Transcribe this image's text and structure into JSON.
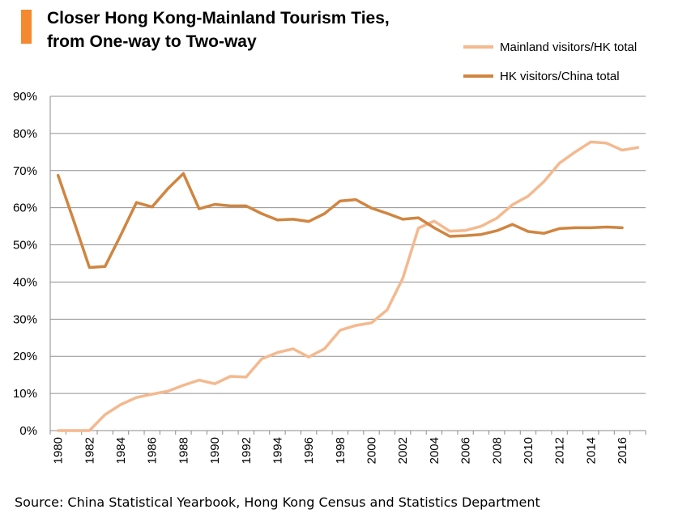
{
  "title_lines": [
    "Closer Hong Kong-Mainland Tourism Ties,",
    "from One-way to Two-way"
  ],
  "accent_color": "#f5892f",
  "source": "Source: China Statistical Yearbook, Hong Kong Census and Statistics Department",
  "chart_data": {
    "type": "line",
    "x_ticks": [
      "1980",
      "1982",
      "1984",
      "1986",
      "1988",
      "1990",
      "1992",
      "1994",
      "1996",
      "1998",
      "2000",
      "2002",
      "2004",
      "2006",
      "2008",
      "2010",
      "2012",
      "2014",
      "2016"
    ],
    "y_ticks": [
      "0%",
      "10%",
      "20%",
      "30%",
      "40%",
      "50%",
      "60%",
      "70%",
      "80%",
      "90%"
    ],
    "ylim": [
      0,
      90
    ],
    "xlim": [
      1980,
      2017
    ],
    "grid": true,
    "legend_position": "top-right",
    "series": [
      {
        "name": "Mainland visitors/HK total",
        "color": "#f4b98f",
        "x": [
          1980,
          1981,
          1982,
          1983,
          1984,
          1985,
          1986,
          1987,
          1988,
          1989,
          1990,
          1991,
          1992,
          1993,
          1994,
          1995,
          1996,
          1997,
          1998,
          1999,
          2000,
          2001,
          2002,
          2003,
          2004,
          2005,
          2006,
          2007,
          2008,
          2009,
          2010,
          2011,
          2012,
          2013,
          2014,
          2015,
          2016,
          2017
        ],
        "values": [
          0,
          0,
          0,
          4.3,
          7,
          8.9,
          9.8,
          10.6,
          12.2,
          13.6,
          12.6,
          14.6,
          14.4,
          19.3,
          21,
          22,
          19.8,
          22,
          27,
          28.3,
          29,
          32.5,
          41,
          54.5,
          56.4,
          53.7,
          53.9,
          55,
          57.2,
          60.8,
          63.1,
          67,
          72,
          75,
          77.7,
          77.4,
          75.5,
          76.2
        ]
      },
      {
        "name": "HK visitors/China total",
        "color": "#d08540",
        "x": [
          1980,
          1981,
          1982,
          1983,
          1984,
          1985,
          1986,
          1987,
          1988,
          1989,
          1990,
          1991,
          1992,
          1993,
          1994,
          1995,
          1996,
          1997,
          1998,
          1999,
          2000,
          2001,
          2002,
          2003,
          2004,
          2005,
          2006,
          2007,
          2008,
          2009,
          2010,
          2011,
          2012,
          2013,
          2014,
          2015,
          2016
        ],
        "values": [
          68.7,
          56.5,
          43.9,
          44.2,
          52.6,
          61.4,
          60.2,
          65.1,
          69.2,
          59.7,
          60.9,
          60.5,
          60.5,
          58.4,
          56.7,
          56.9,
          56.3,
          58.4,
          61.8,
          62.2,
          59.9,
          58.5,
          56.9,
          57.3,
          54.6,
          52.3,
          52.5,
          52.8,
          53.8,
          55.5,
          53.6,
          53.1,
          54.4,
          54.6,
          54.6,
          54.8,
          54.6
        ]
      }
    ]
  }
}
